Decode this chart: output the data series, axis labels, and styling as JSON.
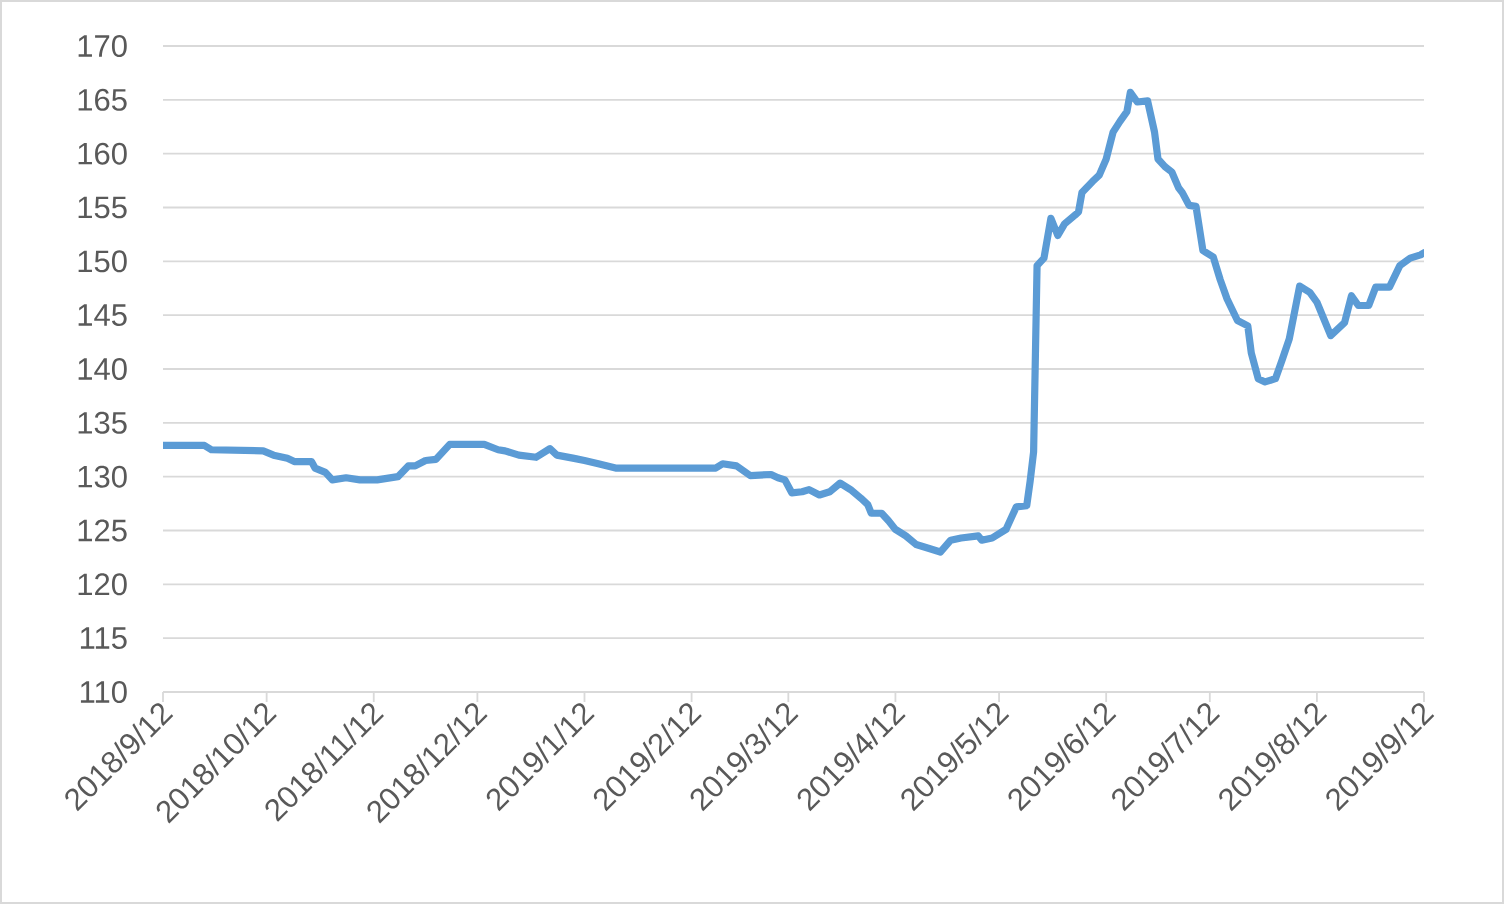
{
  "chart_data": {
    "type": "line",
    "x": [
      "2018-09-12",
      "2018-09-24",
      "2018-09-26",
      "2018-10-11",
      "2018-10-14",
      "2018-10-18",
      "2018-10-20",
      "2018-10-25",
      "2018-10-26",
      "2018-10-29",
      "2018-10-31",
      "2018-11-04",
      "2018-11-08",
      "2018-11-13",
      "2018-11-19",
      "2018-11-22",
      "2018-11-24",
      "2018-11-27",
      "2018-11-30",
      "2018-12-04",
      "2018-12-14",
      "2018-12-18",
      "2018-12-20",
      "2018-12-24",
      "2018-12-29",
      "2019-01-02",
      "2019-01-04",
      "2019-01-09",
      "2019-01-12",
      "2019-01-16",
      "2019-01-21",
      "2019-02-19",
      "2019-02-21",
      "2019-02-25",
      "2019-03-01",
      "2019-03-07",
      "2019-03-09",
      "2019-03-11",
      "2019-03-13",
      "2019-03-16",
      "2019-03-18",
      "2019-03-21",
      "2019-03-24",
      "2019-03-27",
      "2019-03-30",
      "2019-04-02",
      "2019-04-04",
      "2019-04-05",
      "2019-04-08",
      "2019-04-10",
      "2019-04-12",
      "2019-04-15",
      "2019-04-18",
      "2019-04-22",
      "2019-04-25",
      "2019-04-28",
      "2019-05-01",
      "2019-05-06",
      "2019-05-07",
      "2019-05-10",
      "2019-05-14",
      "2019-05-17",
      "2019-05-20",
      "2019-05-21",
      "2019-05-22",
      "2019-05-23",
      "2019-05-25",
      "2019-05-27",
      "2019-05-29",
      "2019-05-31",
      "2019-06-03",
      "2019-06-04",
      "2019-06-05",
      "2019-06-08",
      "2019-06-10",
      "2019-06-12",
      "2019-06-14",
      "2019-06-16",
      "2019-06-18",
      "2019-06-19",
      "2019-06-21",
      "2019-06-24",
      "2019-06-26",
      "2019-06-27",
      "2019-06-29",
      "2019-07-01",
      "2019-07-03",
      "2019-07-04",
      "2019-07-06",
      "2019-07-08",
      "2019-07-10",
      "2019-07-13",
      "2019-07-15",
      "2019-07-17",
      "2019-07-20",
      "2019-07-23",
      "2019-07-24",
      "2019-07-26",
      "2019-07-28",
      "2019-07-31",
      "2019-08-02",
      "2019-08-04",
      "2019-08-07",
      "2019-08-10",
      "2019-08-12",
      "2019-08-16",
      "2019-08-19",
      "2019-08-20",
      "2019-08-22",
      "2019-08-24",
      "2019-08-27",
      "2019-08-29",
      "2019-09-02",
      "2019-09-05",
      "2019-09-08",
      "2019-09-11",
      "2019-09-12"
    ],
    "values": [
      132.9,
      132.9,
      132.5,
      132.4,
      132.0,
      131.7,
      131.4,
      131.4,
      130.8,
      130.4,
      129.7,
      129.9,
      129.7,
      129.7,
      130.0,
      131.0,
      131.0,
      131.5,
      131.6,
      133.0,
      133.0,
      132.5,
      132.4,
      132.0,
      131.8,
      132.6,
      132.0,
      131.7,
      131.5,
      131.2,
      130.8,
      130.8,
      131.2,
      131.0,
      130.1,
      130.2,
      129.9,
      129.7,
      128.5,
      128.6,
      128.8,
      128.3,
      128.6,
      129.4,
      128.8,
      128.0,
      127.4,
      126.6,
      126.6,
      125.9,
      125.1,
      124.5,
      123.7,
      123.3,
      123.0,
      124.1,
      124.3,
      124.5,
      124.1,
      124.3,
      125.1,
      127.2,
      127.3,
      129.6,
      132.3,
      149.6,
      150.3,
      154.0,
      152.4,
      153.5,
      154.3,
      154.6,
      156.4,
      157.4,
      158.0,
      159.5,
      162.0,
      163.0,
      163.9,
      165.7,
      164.8,
      164.9,
      162.0,
      159.5,
      158.8,
      158.3,
      156.8,
      156.4,
      155.2,
      155.1,
      151.0,
      150.4,
      148.3,
      146.5,
      144.5,
      144.0,
      141.5,
      139.1,
      138.8,
      139.1,
      140.9,
      142.8,
      147.7,
      147.1,
      146.2,
      143.1,
      144.0,
      144.3,
      146.8,
      145.9,
      145.9,
      147.6,
      147.6,
      149.6,
      150.3,
      150.6,
      150.8
    ],
    "color": "#5b9bd5",
    "xlim": [
      "2018-09-12",
      "2019-09-12"
    ],
    "ylim": [
      110,
      170
    ],
    "xticks": [
      {
        "value": "2018-09-12",
        "label": "2018/9/12"
      },
      {
        "value": "2018-10-12",
        "label": "2018/10/12"
      },
      {
        "value": "2018-11-12",
        "label": "2018/11/12"
      },
      {
        "value": "2018-12-12",
        "label": "2018/12/12"
      },
      {
        "value": "2019-01-12",
        "label": "2019/1/12"
      },
      {
        "value": "2019-02-12",
        "label": "2019/2/12"
      },
      {
        "value": "2019-03-12",
        "label": "2019/3/12"
      },
      {
        "value": "2019-04-12",
        "label": "2019/4/12"
      },
      {
        "value": "2019-05-12",
        "label": "2019/5/12"
      },
      {
        "value": "2019-06-12",
        "label": "2019/6/12"
      },
      {
        "value": "2019-07-12",
        "label": "2019/7/12"
      },
      {
        "value": "2019-08-12",
        "label": "2019/8/12"
      },
      {
        "value": "2019-09-12",
        "label": "2019/9/12"
      }
    ],
    "yticks": [
      110,
      115,
      120,
      125,
      130,
      135,
      140,
      145,
      150,
      155,
      160,
      165,
      170
    ],
    "grid": "y"
  }
}
